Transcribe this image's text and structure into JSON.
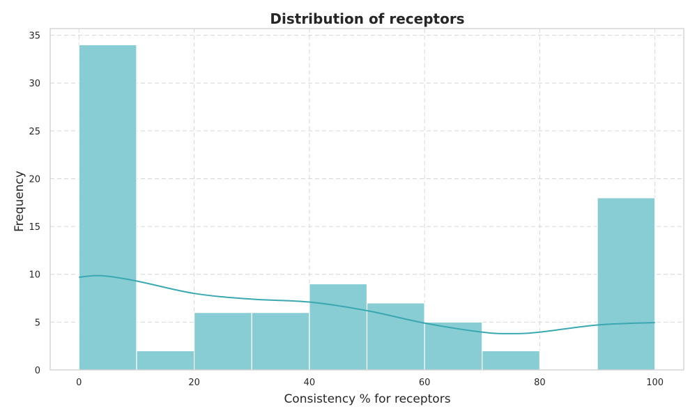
{
  "chart_data": {
    "type": "bar",
    "title": "Distribution of receptors",
    "xlabel": "Consistency % for receptors",
    "ylabel": "Frequency",
    "xlim": [
      -5,
      105
    ],
    "ylim": [
      0,
      35.7
    ],
    "xticks": [
      0,
      20,
      40,
      60,
      80,
      100
    ],
    "yticks": [
      0,
      5,
      10,
      15,
      20,
      25,
      30,
      35
    ],
    "bins": [
      {
        "start": 0,
        "end": 10,
        "count": 34
      },
      {
        "start": 10,
        "end": 20,
        "count": 2
      },
      {
        "start": 20,
        "end": 30,
        "count": 6
      },
      {
        "start": 30,
        "end": 40,
        "count": 6
      },
      {
        "start": 40,
        "end": 50,
        "count": 9
      },
      {
        "start": 50,
        "end": 60,
        "count": 7
      },
      {
        "start": 60,
        "end": 70,
        "count": 5
      },
      {
        "start": 70,
        "end": 80,
        "count": 2
      },
      {
        "start": 80,
        "end": 90,
        "count": 0
      },
      {
        "start": 90,
        "end": 100,
        "count": 18
      }
    ],
    "kde": {
      "x": [
        0,
        4,
        10,
        20,
        30,
        40,
        50,
        60,
        70,
        75,
        80,
        90,
        100
      ],
      "y": [
        9.7,
        9.85,
        9.3,
        8.0,
        7.4,
        7.1,
        6.2,
        4.9,
        3.95,
        3.8,
        3.95,
        4.7,
        4.95
      ]
    },
    "grid": true,
    "colors": {
      "bar": "#88ccd4",
      "kde": "#3aa8b1"
    }
  }
}
